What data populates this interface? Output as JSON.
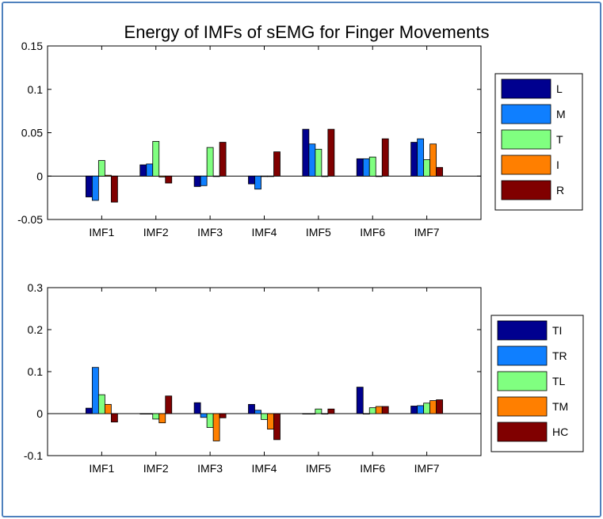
{
  "title": "Energy of IMFs  of sEMG for Finger Movements",
  "chart_data": [
    {
      "type": "bar",
      "categories": [
        "IMF1",
        "IMF2",
        "IMF3",
        "IMF4",
        "IMF5",
        "IMF6",
        "IMF7"
      ],
      "ylim": [
        -0.05,
        0.15
      ],
      "yticks": [
        "-0.05",
        "0",
        "0.05",
        "0.1",
        "0.15"
      ],
      "ytick_values": [
        -0.05,
        0,
        0.05,
        0.1,
        0.15
      ],
      "legend_position": "right",
      "series": [
        {
          "name": "L",
          "color": "#00008f",
          "values": [
            -0.024,
            0.013,
            -0.012,
            -0.009,
            0.054,
            0.02,
            0.039
          ]
        },
        {
          "name": "M",
          "color": "#0f7fff",
          "values": [
            -0.028,
            0.014,
            -0.011,
            -0.015,
            0.037,
            0.02,
            0.043
          ]
        },
        {
          "name": "T",
          "color": "#80ff80",
          "values": [
            0.018,
            0.04,
            0.033,
            0.0,
            0.031,
            0.022,
            0.019
          ]
        },
        {
          "name": "I",
          "color": "#ff7f00",
          "values": [
            0.001,
            -0.001,
            0.0,
            0.0,
            0.0,
            0.0,
            0.037
          ]
        },
        {
          "name": "R",
          "color": "#800000",
          "values": [
            -0.03,
            -0.008,
            0.039,
            0.028,
            0.054,
            0.043,
            0.01
          ]
        }
      ]
    },
    {
      "type": "bar",
      "categories": [
        "IMF1",
        "IMF2",
        "IMF3",
        "IMF4",
        "IMF5",
        "IMF6",
        "IMF7"
      ],
      "ylim": [
        -0.1,
        0.3
      ],
      "yticks": [
        "-0.1",
        "0",
        "0.1",
        "0.2",
        "0.3"
      ],
      "ytick_values": [
        -0.1,
        0,
        0.1,
        0.2,
        0.3
      ],
      "legend_position": "right",
      "series": [
        {
          "name": "TI",
          "color": "#00008f",
          "values": [
            0.013,
            0.0,
            0.026,
            0.022,
            0.0,
            0.063,
            0.018
          ]
        },
        {
          "name": "TR",
          "color": "#0f7fff",
          "values": [
            0.11,
            0.0,
            -0.009,
            0.008,
            0.0,
            0.0,
            0.019
          ]
        },
        {
          "name": "TL",
          "color": "#80ff80",
          "values": [
            0.045,
            -0.013,
            -0.033,
            -0.014,
            0.011,
            0.014,
            0.025
          ]
        },
        {
          "name": "TM",
          "color": "#ff7f00",
          "values": [
            0.022,
            -0.022,
            -0.065,
            -0.037,
            0.0,
            0.017,
            0.031
          ]
        },
        {
          "name": "HC",
          "color": "#800000",
          "values": [
            -0.02,
            0.042,
            -0.01,
            -0.062,
            0.011,
            0.017,
            0.033
          ]
        }
      ]
    }
  ]
}
